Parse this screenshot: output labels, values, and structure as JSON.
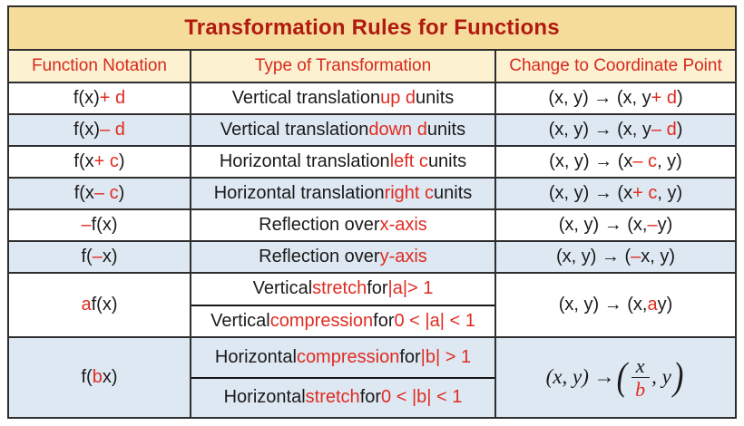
{
  "colors": {
    "title_bg": "#F6DC9B",
    "header_bg": "#FCF2D2",
    "row_blue_bg": "#DEE8F2",
    "row_white_bg": "#FFFFFF",
    "border": "#2E2E2E",
    "title_red": "#B01A10",
    "header_red": "#D8291F",
    "accent_red": "#E02B20",
    "text_black": "#1A1A1A"
  },
  "table": {
    "title": "Transformation Rules for Functions",
    "headers": [
      "Function Notation",
      "Type of Transformation",
      "Change to Coordinate Point"
    ],
    "rows": [
      {
        "shade": "white",
        "notation": [
          {
            "t": "f(x) "
          },
          {
            "t": "+ d",
            "red": true
          }
        ],
        "type_lines": [
          [
            {
              "t": "Vertical translation "
            },
            {
              "t": "up d",
              "red": true
            },
            {
              "t": " units"
            }
          ]
        ],
        "coord": [
          {
            "t": "(x, y) → (x, y "
          },
          {
            "t": "+ d",
            "red": true
          },
          {
            "t": ")"
          }
        ]
      },
      {
        "shade": "blue",
        "notation": [
          {
            "t": "f(x) "
          },
          {
            "t": "– d",
            "red": true
          }
        ],
        "type_lines": [
          [
            {
              "t": "Vertical translation "
            },
            {
              "t": "down d",
              "red": true
            },
            {
              "t": " units"
            }
          ]
        ],
        "coord": [
          {
            "t": "(x, y) → (x, y "
          },
          {
            "t": "– d",
            "red": true
          },
          {
            "t": ")"
          }
        ]
      },
      {
        "shade": "white",
        "notation": [
          {
            "t": "f(x "
          },
          {
            "t": "+ c",
            "red": true
          },
          {
            "t": ")"
          }
        ],
        "type_lines": [
          [
            {
              "t": "Horizontal translation "
            },
            {
              "t": "left c",
              "red": true
            },
            {
              "t": " units"
            }
          ]
        ],
        "coord": [
          {
            "t": "(x, y) → (x "
          },
          {
            "t": "– c",
            "red": true
          },
          {
            "t": ", y)"
          }
        ]
      },
      {
        "shade": "blue",
        "notation": [
          {
            "t": "f(x "
          },
          {
            "t": "– c",
            "red": true
          },
          {
            "t": ")"
          }
        ],
        "type_lines": [
          [
            {
              "t": "Horizontal translation "
            },
            {
              "t": "right c",
              "red": true
            },
            {
              "t": " units"
            }
          ]
        ],
        "coord": [
          {
            "t": "(x, y) → (x "
          },
          {
            "t": "+ c",
            "red": true
          },
          {
            "t": ", y)"
          }
        ]
      },
      {
        "shade": "white",
        "notation": [
          {
            "t": "–",
            "red": true
          },
          {
            "t": "f(x)"
          }
        ],
        "type_lines": [
          [
            {
              "t": "Reflection over "
            },
            {
              "t": "x-axis",
              "red": true
            }
          ]
        ],
        "coord": [
          {
            "t": "(x, y) → (x, "
          },
          {
            "t": "–",
            "red": true
          },
          {
            "t": "y)"
          }
        ]
      },
      {
        "shade": "blue",
        "notation": [
          {
            "t": "f("
          },
          {
            "t": "–",
            "red": true
          },
          {
            "t": "x)"
          }
        ],
        "type_lines": [
          [
            {
              "t": "Reflection over "
            },
            {
              "t": "y-axis",
              "red": true
            }
          ]
        ],
        "coord": [
          {
            "t": "(x, y) → ("
          },
          {
            "t": "–",
            "red": true
          },
          {
            "t": "x, y)"
          }
        ]
      },
      {
        "shade": "white",
        "notation": [
          {
            "t": "a",
            "red": true
          },
          {
            "t": "f(x)"
          }
        ],
        "type_lines": [
          [
            {
              "t": "Vertical "
            },
            {
              "t": "stretch",
              "red": true
            },
            {
              "t": " for "
            },
            {
              "t": "|a|> 1",
              "red": true
            }
          ],
          [
            {
              "t": "Vertical "
            },
            {
              "t": "compression",
              "red": true
            },
            {
              "t": " for "
            },
            {
              "t": "0 < |a| < 1",
              "red": true
            }
          ]
        ],
        "coord": [
          {
            "t": "(x, y) → (x, "
          },
          {
            "t": "a",
            "red": true
          },
          {
            "t": "y)"
          }
        ]
      },
      {
        "shade": "blue",
        "notation": [
          {
            "t": "f("
          },
          {
            "t": "b",
            "red": true
          },
          {
            "t": "x)"
          }
        ],
        "type_lines": [
          [
            {
              "t": "Horizontal "
            },
            {
              "t": "compression",
              "red": true
            },
            {
              "t": " for "
            },
            {
              "t": "|b| > 1",
              "red": true
            }
          ],
          [
            {
              "t": "Horizontal "
            },
            {
              "t": "stretch",
              "red": true
            },
            {
              "t": " for "
            },
            {
              "t": "0 < |b| < 1",
              "red": true
            }
          ]
        ],
        "coord_math": {
          "prefix": "(x, y) → ",
          "open_paren": "(",
          "numerator": "x",
          "denominator": "b",
          "suffix": ", y",
          "close_paren": ")"
        }
      }
    ]
  }
}
